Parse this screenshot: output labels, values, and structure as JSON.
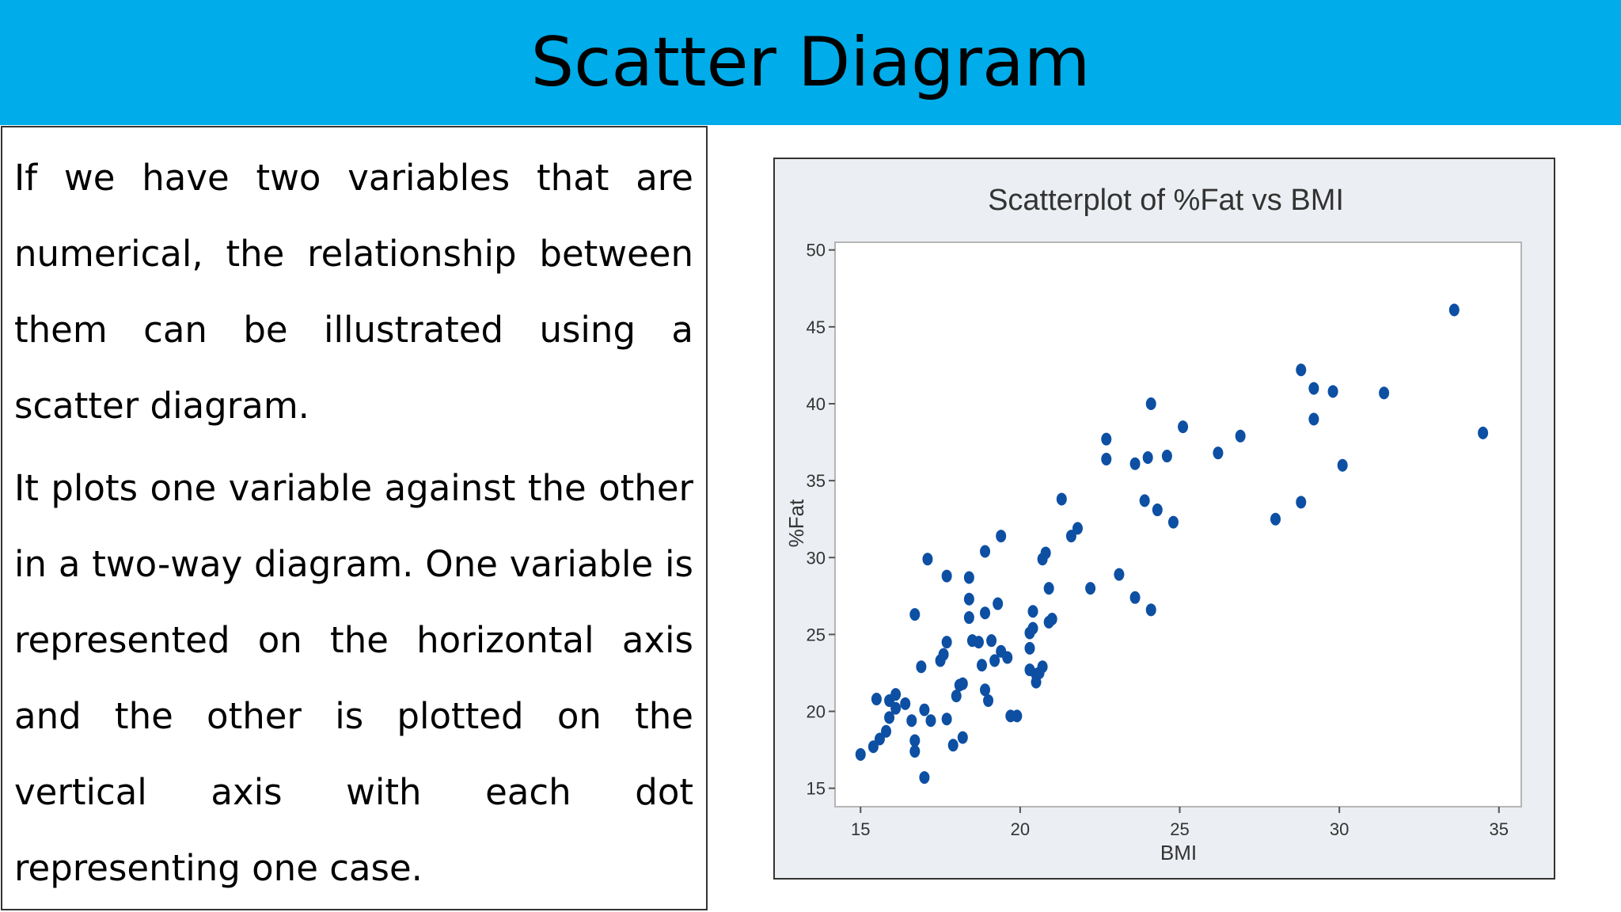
{
  "slide": {
    "title": "Scatter Diagram",
    "paragraphs": [
      "If we have two variables that are numerical, the relationship between them can be illustrated using a scatter diagram.",
      "It plots one variable against the other in a two-way diagram. One variable is represented on the horizontal axis and the other is plotted on the vertical axis with each dot representing one case."
    ],
    "colors": {
      "header": "#00ace9",
      "dot": "#0d4fa3",
      "plot_bg": "#ffffff",
      "frame_bg": "#ebeef2"
    }
  },
  "chart_data": {
    "type": "scatter",
    "title": "Scatterplot of %Fat vs BMI",
    "xlabel": "BMI",
    "ylabel": "%Fat",
    "xlim": [
      14.2,
      35.7
    ],
    "ylim": [
      13.8,
      50.5
    ],
    "xticks": [
      15,
      20,
      25,
      30,
      35
    ],
    "yticks": [
      15,
      20,
      25,
      30,
      35,
      40,
      45,
      50
    ],
    "grid": false,
    "points": [
      [
        15.0,
        17.2
      ],
      [
        15.4,
        17.7
      ],
      [
        15.6,
        18.2
      ],
      [
        15.5,
        20.8
      ],
      [
        15.8,
        18.7
      ],
      [
        15.9,
        19.6
      ],
      [
        15.9,
        20.7
      ],
      [
        16.1,
        21.1
      ],
      [
        16.1,
        20.2
      ],
      [
        16.4,
        20.5
      ],
      [
        16.6,
        19.4
      ],
      [
        16.7,
        18.1
      ],
      [
        16.7,
        17.4
      ],
      [
        16.7,
        26.3
      ],
      [
        16.9,
        22.9
      ],
      [
        17.0,
        20.1
      ],
      [
        17.0,
        15.7
      ],
      [
        17.1,
        29.9
      ],
      [
        17.2,
        19.4
      ],
      [
        17.5,
        23.3
      ],
      [
        17.6,
        23.7
      ],
      [
        17.7,
        24.5
      ],
      [
        17.7,
        19.5
      ],
      [
        17.7,
        28.8
      ],
      [
        17.9,
        17.8
      ],
      [
        18.0,
        21.0
      ],
      [
        18.1,
        21.7
      ],
      [
        18.2,
        21.8
      ],
      [
        18.2,
        18.3
      ],
      [
        18.4,
        28.7
      ],
      [
        18.4,
        27.3
      ],
      [
        18.4,
        26.1
      ],
      [
        18.5,
        24.6
      ],
      [
        18.7,
        24.5
      ],
      [
        18.8,
        23.0
      ],
      [
        18.9,
        26.4
      ],
      [
        18.9,
        30.4
      ],
      [
        18.9,
        21.4
      ],
      [
        19.0,
        20.7
      ],
      [
        19.1,
        24.6
      ],
      [
        19.2,
        23.3
      ],
      [
        19.3,
        27.0
      ],
      [
        19.4,
        31.4
      ],
      [
        19.4,
        23.9
      ],
      [
        19.6,
        23.5
      ],
      [
        19.7,
        19.7
      ],
      [
        19.9,
        19.7
      ],
      [
        20.3,
        22.7
      ],
      [
        20.3,
        25.1
      ],
      [
        20.3,
        24.1
      ],
      [
        20.4,
        25.4
      ],
      [
        20.4,
        26.5
      ],
      [
        20.5,
        22.4
      ],
      [
        20.5,
        21.9
      ],
      [
        20.6,
        22.5
      ],
      [
        20.7,
        22.9
      ],
      [
        20.7,
        29.9
      ],
      [
        20.8,
        30.3
      ],
      [
        20.9,
        28.0
      ],
      [
        20.9,
        25.8
      ],
      [
        21.0,
        26.0
      ],
      [
        21.3,
        33.8
      ],
      [
        21.6,
        31.4
      ],
      [
        21.8,
        31.9
      ],
      [
        22.2,
        28.0
      ],
      [
        22.7,
        36.4
      ],
      [
        22.7,
        37.7
      ],
      [
        23.1,
        28.9
      ],
      [
        23.6,
        27.4
      ],
      [
        23.6,
        36.1
      ],
      [
        23.9,
        33.7
      ],
      [
        24.0,
        36.5
      ],
      [
        24.1,
        26.6
      ],
      [
        24.1,
        40.0
      ],
      [
        24.3,
        33.1
      ],
      [
        24.6,
        36.6
      ],
      [
        24.8,
        32.3
      ],
      [
        25.1,
        38.5
      ],
      [
        26.2,
        36.8
      ],
      [
        26.9,
        37.9
      ],
      [
        28.0,
        32.5
      ],
      [
        28.8,
        42.2
      ],
      [
        28.8,
        33.6
      ],
      [
        29.2,
        41.0
      ],
      [
        29.2,
        39.0
      ],
      [
        29.8,
        40.8
      ],
      [
        30.1,
        36.0
      ],
      [
        31.4,
        40.7
      ],
      [
        33.6,
        46.1
      ],
      [
        34.5,
        38.1
      ]
    ]
  }
}
